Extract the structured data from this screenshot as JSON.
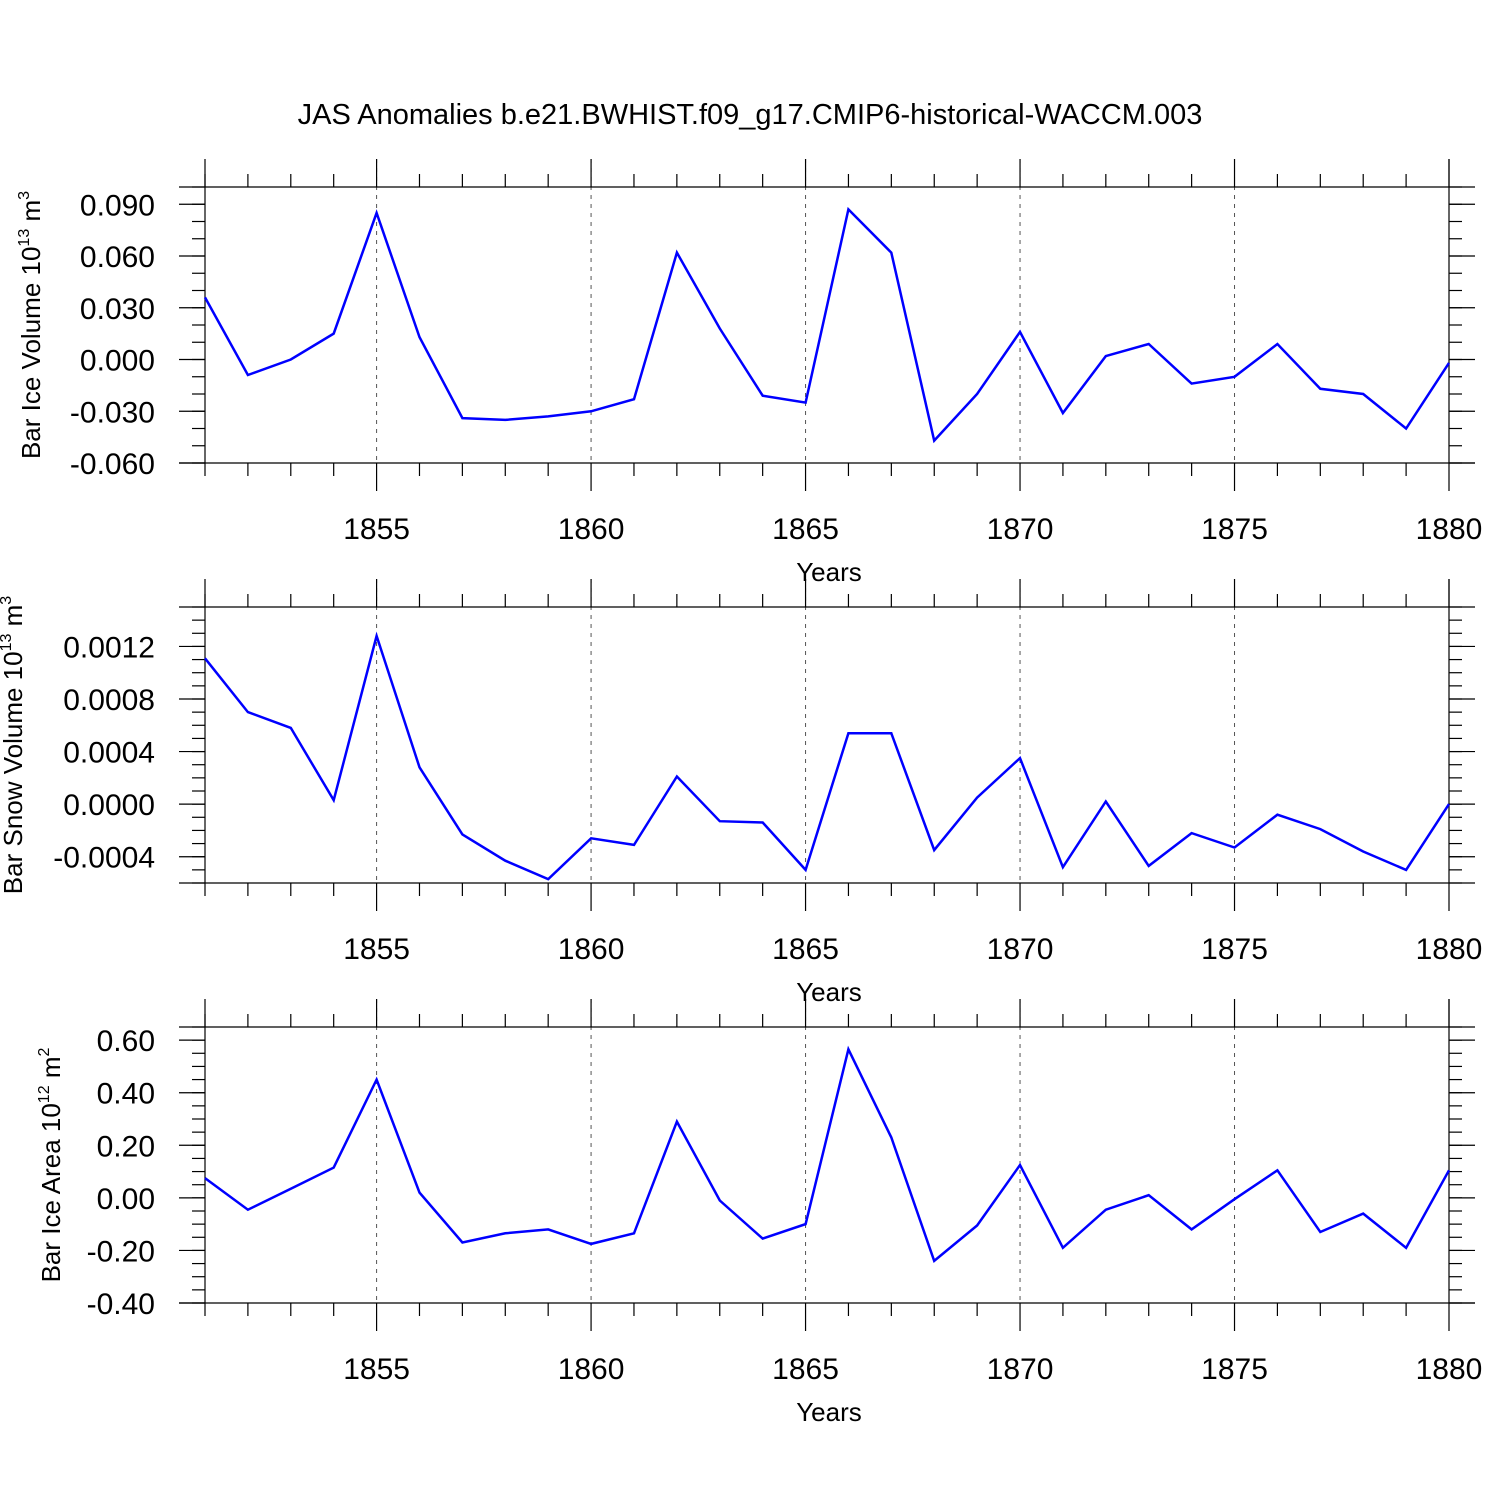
{
  "title": "JAS Anomalies b.e21.BWHIST.f09_g17.CMIP6-historical-WACCM.003",
  "line_color": "#0000ff",
  "chart_data": [
    {
      "type": "line",
      "ylabel": {
        "text": "Bar Ice Volume 10",
        "sup": "13",
        "unit": " m",
        "unit_sup": "3"
      },
      "xlabel": "Years",
      "xlim": [
        1851,
        1880
      ],
      "ylim": [
        -0.06,
        0.1
      ],
      "xticks": [
        "1855",
        "1860",
        "1865",
        "1870",
        "1875",
        "1880"
      ],
      "xtick_values": [
        1855,
        1860,
        1865,
        1870,
        1875,
        1880
      ],
      "yticks": [
        "-0.060",
        "-0.030",
        "0.000",
        "0.030",
        "0.060",
        "0.090"
      ],
      "ytick_values": [
        -0.06,
        -0.03,
        0.0,
        0.03,
        0.06,
        0.09
      ],
      "yminor_step": 0.01,
      "x": [
        1851,
        1852,
        1853,
        1854,
        1855,
        1856,
        1857,
        1858,
        1859,
        1860,
        1861,
        1862,
        1863,
        1864,
        1865,
        1866,
        1867,
        1868,
        1869,
        1870,
        1871,
        1872,
        1873,
        1874,
        1875,
        1876,
        1877,
        1878,
        1879,
        1880
      ],
      "values": [
        0.036,
        -0.009,
        0.0,
        0.015,
        0.085,
        0.013,
        -0.034,
        -0.035,
        -0.033,
        -0.03,
        -0.023,
        0.062,
        0.018,
        -0.021,
        -0.025,
        0.087,
        0.062,
        -0.047,
        -0.02,
        0.016,
        -0.031,
        0.002,
        0.009,
        -0.014,
        -0.01,
        0.009,
        -0.017,
        -0.02,
        -0.04,
        -0.002
      ]
    },
    {
      "type": "line",
      "ylabel": {
        "text": "Bar Snow Volume 10",
        "sup": "13",
        "unit": " m",
        "unit_sup": "3"
      },
      "xlabel": "Years",
      "xlim": [
        1851,
        1880
      ],
      "ylim": [
        -0.0006,
        0.0015
      ],
      "xticks": [
        "1855",
        "1860",
        "1865",
        "1870",
        "1875",
        "1880"
      ],
      "xtick_values": [
        1855,
        1860,
        1865,
        1870,
        1875,
        1880
      ],
      "yticks": [
        "-0.0004",
        "0.0000",
        "0.0004",
        "0.0008",
        "0.0012"
      ],
      "ytick_values": [
        -0.0004,
        0.0,
        0.0004,
        0.0008,
        0.0012
      ],
      "yminor_step": 0.0001,
      "x": [
        1851,
        1852,
        1853,
        1854,
        1855,
        1856,
        1857,
        1858,
        1859,
        1860,
        1861,
        1862,
        1863,
        1864,
        1865,
        1866,
        1867,
        1868,
        1869,
        1870,
        1871,
        1872,
        1873,
        1874,
        1875,
        1876,
        1877,
        1878,
        1879,
        1880
      ],
      "values": [
        0.00111,
        0.0007,
        0.00058,
        3e-05,
        0.00128,
        0.00028,
        -0.00023,
        -0.00043,
        -0.00057,
        -0.00026,
        -0.00031,
        0.00021,
        -0.00013,
        -0.00014,
        -0.0005,
        0.00054,
        0.00054,
        -0.00035,
        5e-05,
        0.00035,
        -0.00048,
        2e-05,
        -0.00047,
        -0.00022,
        -0.00033,
        -8e-05,
        -0.00019,
        -0.00036,
        -0.0005,
        0.0
      ]
    },
    {
      "type": "line",
      "ylabel": {
        "text": "Bar Ice Area 10",
        "sup": "12",
        "unit": " m",
        "unit_sup": "2"
      },
      "xlabel": "Years",
      "xlim": [
        1851,
        1880
      ],
      "ylim": [
        -0.4,
        0.65
      ],
      "xticks": [
        "1855",
        "1860",
        "1865",
        "1870",
        "1875",
        "1880"
      ],
      "xtick_values": [
        1855,
        1860,
        1865,
        1870,
        1875,
        1880
      ],
      "yticks": [
        "-0.40",
        "-0.20",
        "0.00",
        "0.20",
        "0.40",
        "0.60"
      ],
      "ytick_values": [
        -0.4,
        -0.2,
        0.0,
        0.2,
        0.4,
        0.6
      ],
      "yminor_step": 0.05,
      "x": [
        1851,
        1852,
        1853,
        1854,
        1855,
        1856,
        1857,
        1858,
        1859,
        1860,
        1861,
        1862,
        1863,
        1864,
        1865,
        1866,
        1867,
        1868,
        1869,
        1870,
        1871,
        1872,
        1873,
        1874,
        1875,
        1876,
        1877,
        1878,
        1879,
        1880
      ],
      "values": [
        0.075,
        -0.045,
        0.035,
        0.115,
        0.45,
        0.02,
        -0.17,
        -0.135,
        -0.12,
        -0.175,
        -0.135,
        0.29,
        -0.01,
        -0.155,
        -0.1,
        0.565,
        0.23,
        -0.24,
        -0.105,
        0.125,
        -0.19,
        -0.045,
        0.01,
        -0.12,
        -0.005,
        0.105,
        -0.13,
        -0.06,
        -0.19,
        0.105
      ]
    }
  ]
}
